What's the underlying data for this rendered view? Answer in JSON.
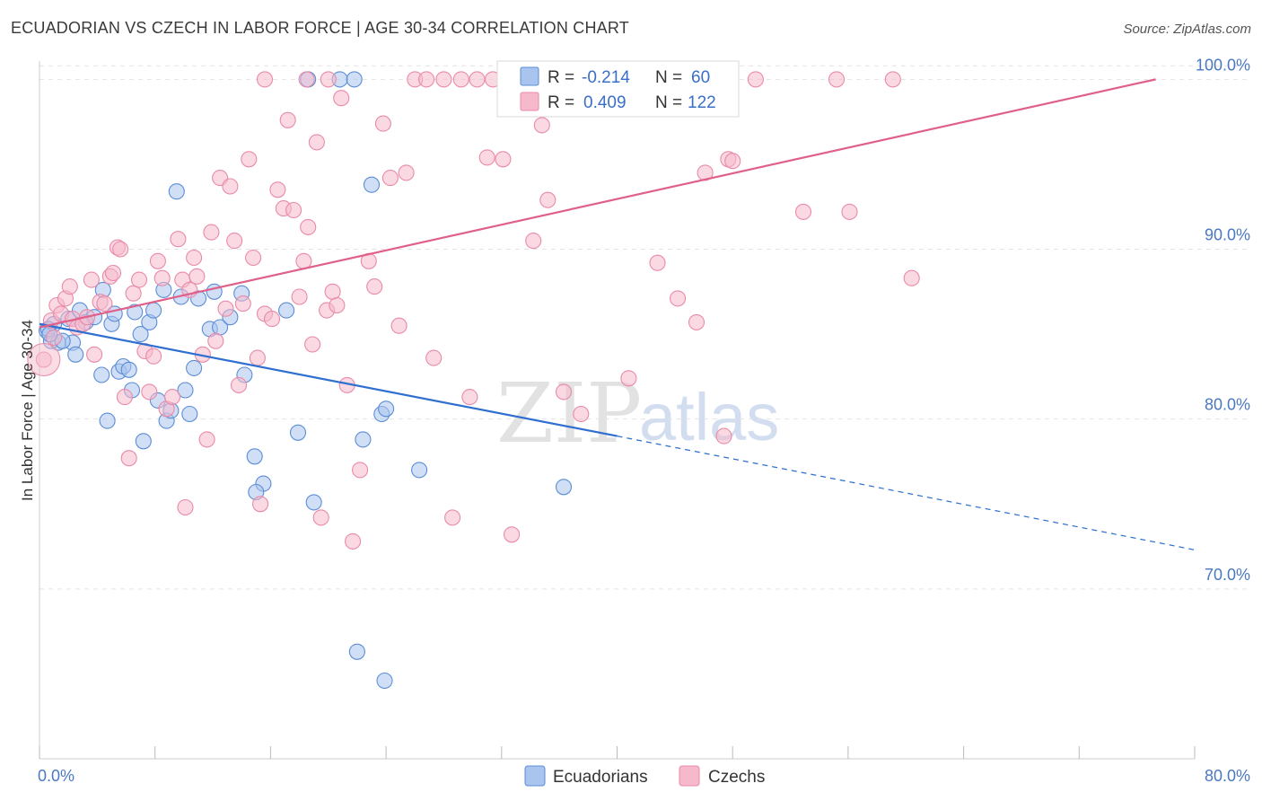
{
  "title": "ECUADORIAN VS CZECH IN LABOR FORCE | AGE 30-34 CORRELATION CHART",
  "source": "Source: ZipAtlas.com",
  "watermark": {
    "zip": "ZIP",
    "atlas": "atlas"
  },
  "colors": {
    "ecuadorians_fill": "#a9c4ee",
    "ecuadorians_stroke": "#5b8dd6",
    "ecuadorians_line": "#2f6fd0",
    "czechs_fill": "#f6b9cc",
    "czechs_stroke": "#e98aa8",
    "czechs_line": "#e0608a",
    "axis_label": "#4a78c2",
    "grid": "#e3e3e3"
  },
  "legend": {
    "r_label": "R =",
    "n_label": "N =",
    "rows": [
      {
        "r_value": "-0.214",
        "n_value": "60"
      },
      {
        "r_value": "0.409",
        "n_value": "122"
      }
    ]
  },
  "chart_data": {
    "type": "scatter",
    "title": "ECUADORIAN VS CZECH IN LABOR FORCE | AGE 30-34 CORRELATION CHART",
    "xlabel": "",
    "ylabel": "In Labor Force | Age 30-34",
    "xlim": [
      0,
      80
    ],
    "ylim": [
      60,
      101.5
    ],
    "x_tick_labels": [
      "0.0%",
      "80.0%"
    ],
    "y_ticks": [
      70,
      80,
      90,
      100
    ],
    "y_tick_labels": [
      "70.0%",
      "80.0%",
      "90.0%",
      "100.0%"
    ],
    "grid": true,
    "legend_position": "top-center",
    "bottom_legend": [
      "Ecuadorians",
      "Czechs"
    ],
    "series": [
      {
        "name": "Ecuadorians",
        "r": -0.214,
        "n": 60,
        "trend": {
          "x0": 0,
          "y0": 85.6,
          "x1": 40,
          "y1": 79.0,
          "dash_to_x": 80,
          "dash_to_y": 72.3
        },
        "points": [
          [
            0.5,
            85.2
          ],
          [
            0.8,
            84.6
          ],
          [
            1.0,
            85.6
          ],
          [
            1.3,
            84.5
          ],
          [
            2.0,
            85.9
          ],
          [
            2.3,
            84.5
          ],
          [
            2.5,
            83.8
          ],
          [
            2.8,
            86.4
          ],
          [
            3.2,
            85.7
          ],
          [
            3.8,
            86.0
          ],
          [
            4.3,
            82.6
          ],
          [
            4.4,
            87.6
          ],
          [
            4.7,
            79.9
          ],
          [
            5.0,
            85.6
          ],
          [
            5.2,
            86.2
          ],
          [
            5.5,
            82.8
          ],
          [
            5.8,
            83.1
          ],
          [
            6.2,
            82.9
          ],
          [
            6.4,
            81.7
          ],
          [
            6.6,
            86.3
          ],
          [
            7.0,
            85.0
          ],
          [
            7.2,
            78.7
          ],
          [
            7.6,
            85.7
          ],
          [
            7.9,
            86.4
          ],
          [
            8.2,
            81.1
          ],
          [
            8.6,
            87.6
          ],
          [
            8.8,
            79.9
          ],
          [
            9.1,
            80.5
          ],
          [
            9.5,
            93.4
          ],
          [
            9.8,
            87.2
          ],
          [
            10.1,
            81.7
          ],
          [
            10.4,
            80.3
          ],
          [
            10.7,
            83.0
          ],
          [
            11.0,
            87.1
          ],
          [
            11.8,
            85.3
          ],
          [
            12.1,
            87.5
          ],
          [
            12.5,
            85.4
          ],
          [
            13.2,
            86.0
          ],
          [
            14.0,
            87.4
          ],
          [
            14.2,
            82.6
          ],
          [
            14.9,
            77.8
          ],
          [
            15.5,
            76.2
          ],
          [
            15.0,
            75.7
          ],
          [
            17.1,
            86.4
          ],
          [
            17.9,
            79.2
          ],
          [
            18.6,
            100.0
          ],
          [
            19.0,
            75.1
          ],
          [
            20.8,
            100.0
          ],
          [
            21.8,
            100.0
          ],
          [
            22.0,
            66.3
          ],
          [
            22.4,
            78.8
          ],
          [
            23.0,
            93.8
          ],
          [
            23.7,
            80.3
          ],
          [
            24.0,
            80.6
          ],
          [
            26.3,
            77.0
          ],
          [
            36.3,
            76.0
          ],
          [
            23.9,
            64.6
          ],
          [
            0.6,
            85.3
          ],
          [
            1.6,
            84.6
          ],
          [
            0.7,
            85.0
          ]
        ]
      },
      {
        "name": "Czechs",
        "r": 0.409,
        "n": 122,
        "trend": {
          "x0": 0,
          "y0": 85.4,
          "x1": 77.3,
          "y1": 100.0
        },
        "points": [
          [
            0.3,
            83.5
          ],
          [
            0.8,
            85.8
          ],
          [
            1.0,
            84.8
          ],
          [
            1.2,
            86.7
          ],
          [
            1.5,
            86.2
          ],
          [
            1.8,
            87.1
          ],
          [
            2.1,
            87.8
          ],
          [
            2.3,
            85.9
          ],
          [
            2.6,
            85.4
          ],
          [
            3.0,
            85.6
          ],
          [
            3.3,
            86.0
          ],
          [
            3.6,
            88.2
          ],
          [
            3.8,
            83.8
          ],
          [
            4.2,
            86.9
          ],
          [
            4.5,
            86.8
          ],
          [
            4.9,
            88.4
          ],
          [
            5.1,
            88.6
          ],
          [
            5.4,
            90.1
          ],
          [
            5.6,
            90.0
          ],
          [
            5.9,
            81.3
          ],
          [
            6.2,
            77.7
          ],
          [
            6.5,
            87.4
          ],
          [
            6.9,
            88.2
          ],
          [
            7.3,
            84.0
          ],
          [
            7.6,
            81.6
          ],
          [
            7.9,
            83.7
          ],
          [
            8.2,
            89.3
          ],
          [
            8.5,
            88.3
          ],
          [
            8.8,
            80.6
          ],
          [
            9.2,
            81.3
          ],
          [
            9.6,
            90.6
          ],
          [
            9.9,
            88.2
          ],
          [
            10.1,
            74.8
          ],
          [
            10.4,
            87.6
          ],
          [
            10.7,
            89.5
          ],
          [
            10.9,
            88.4
          ],
          [
            11.3,
            83.8
          ],
          [
            11.6,
            78.8
          ],
          [
            11.9,
            91.0
          ],
          [
            12.2,
            84.6
          ],
          [
            12.5,
            94.2
          ],
          [
            12.9,
            86.5
          ],
          [
            13.2,
            93.7
          ],
          [
            13.5,
            90.5
          ],
          [
            13.8,
            82.0
          ],
          [
            14.1,
            86.8
          ],
          [
            14.5,
            95.3
          ],
          [
            14.8,
            89.5
          ],
          [
            15.1,
            83.6
          ],
          [
            15.3,
            75.0
          ],
          [
            15.6,
            86.2
          ],
          [
            16.1,
            85.9
          ],
          [
            16.5,
            93.5
          ],
          [
            16.9,
            92.4
          ],
          [
            17.2,
            97.6
          ],
          [
            17.6,
            92.3
          ],
          [
            18.0,
            87.2
          ],
          [
            18.3,
            89.3
          ],
          [
            18.6,
            91.3
          ],
          [
            18.9,
            84.4
          ],
          [
            19.2,
            96.3
          ],
          [
            19.5,
            74.2
          ],
          [
            19.9,
            86.4
          ],
          [
            20.3,
            87.5
          ],
          [
            20.6,
            86.7
          ],
          [
            20.9,
            98.9
          ],
          [
            21.3,
            82.0
          ],
          [
            21.7,
            72.8
          ],
          [
            22.2,
            77.0
          ],
          [
            22.8,
            89.3
          ],
          [
            23.2,
            87.8
          ],
          [
            23.8,
            97.4
          ],
          [
            24.3,
            94.2
          ],
          [
            24.9,
            85.5
          ],
          [
            25.4,
            94.5
          ],
          [
            26.0,
            100.0
          ],
          [
            26.8,
            100.0
          ],
          [
            27.3,
            83.6
          ],
          [
            28.0,
            100.0
          ],
          [
            28.6,
            74.2
          ],
          [
            29.2,
            100.0
          ],
          [
            29.8,
            81.3
          ],
          [
            30.3,
            100.0
          ],
          [
            31.0,
            95.4
          ],
          [
            31.4,
            100.0
          ],
          [
            32.1,
            95.3
          ],
          [
            32.7,
            73.2
          ],
          [
            33.0,
            100.0
          ],
          [
            33.6,
            100.0
          ],
          [
            34.2,
            90.5
          ],
          [
            34.8,
            97.3
          ],
          [
            35.2,
            92.9
          ],
          [
            35.8,
            100.0
          ],
          [
            36.3,
            81.6
          ],
          [
            37.0,
            100.0
          ],
          [
            37.5,
            80.3
          ],
          [
            38.1,
            100.0
          ],
          [
            38.8,
            100.0
          ],
          [
            39.3,
            100.0
          ],
          [
            40.0,
            100.0
          ],
          [
            40.8,
            82.4
          ],
          [
            41.5,
            100.0
          ],
          [
            42.1,
            100.0
          ],
          [
            42.8,
            89.2
          ],
          [
            43.5,
            100.0
          ],
          [
            44.2,
            87.1
          ],
          [
            44.9,
            100.0
          ],
          [
            45.5,
            85.7
          ],
          [
            46.1,
            94.5
          ],
          [
            46.8,
            100.0
          ],
          [
            47.4,
            79.0
          ],
          [
            47.7,
            95.3
          ],
          [
            48.0,
            95.2
          ],
          [
            49.6,
            100.0
          ],
          [
            52.9,
            92.2
          ],
          [
            55.2,
            100.0
          ],
          [
            56.1,
            92.2
          ],
          [
            59.1,
            100.0
          ],
          [
            60.4,
            88.3
          ],
          [
            15.6,
            100.0
          ],
          [
            20.0,
            100.0
          ],
          [
            18.5,
            100.0
          ]
        ]
      }
    ]
  },
  "axis": {
    "x_min_label": "0.0%",
    "x_max_label": "80.0%",
    "y_title": "In Labor Force | Age 30-34"
  },
  "bottom_legend": {
    "ecuadorians": "Ecuadorians",
    "czechs": "Czechs"
  }
}
